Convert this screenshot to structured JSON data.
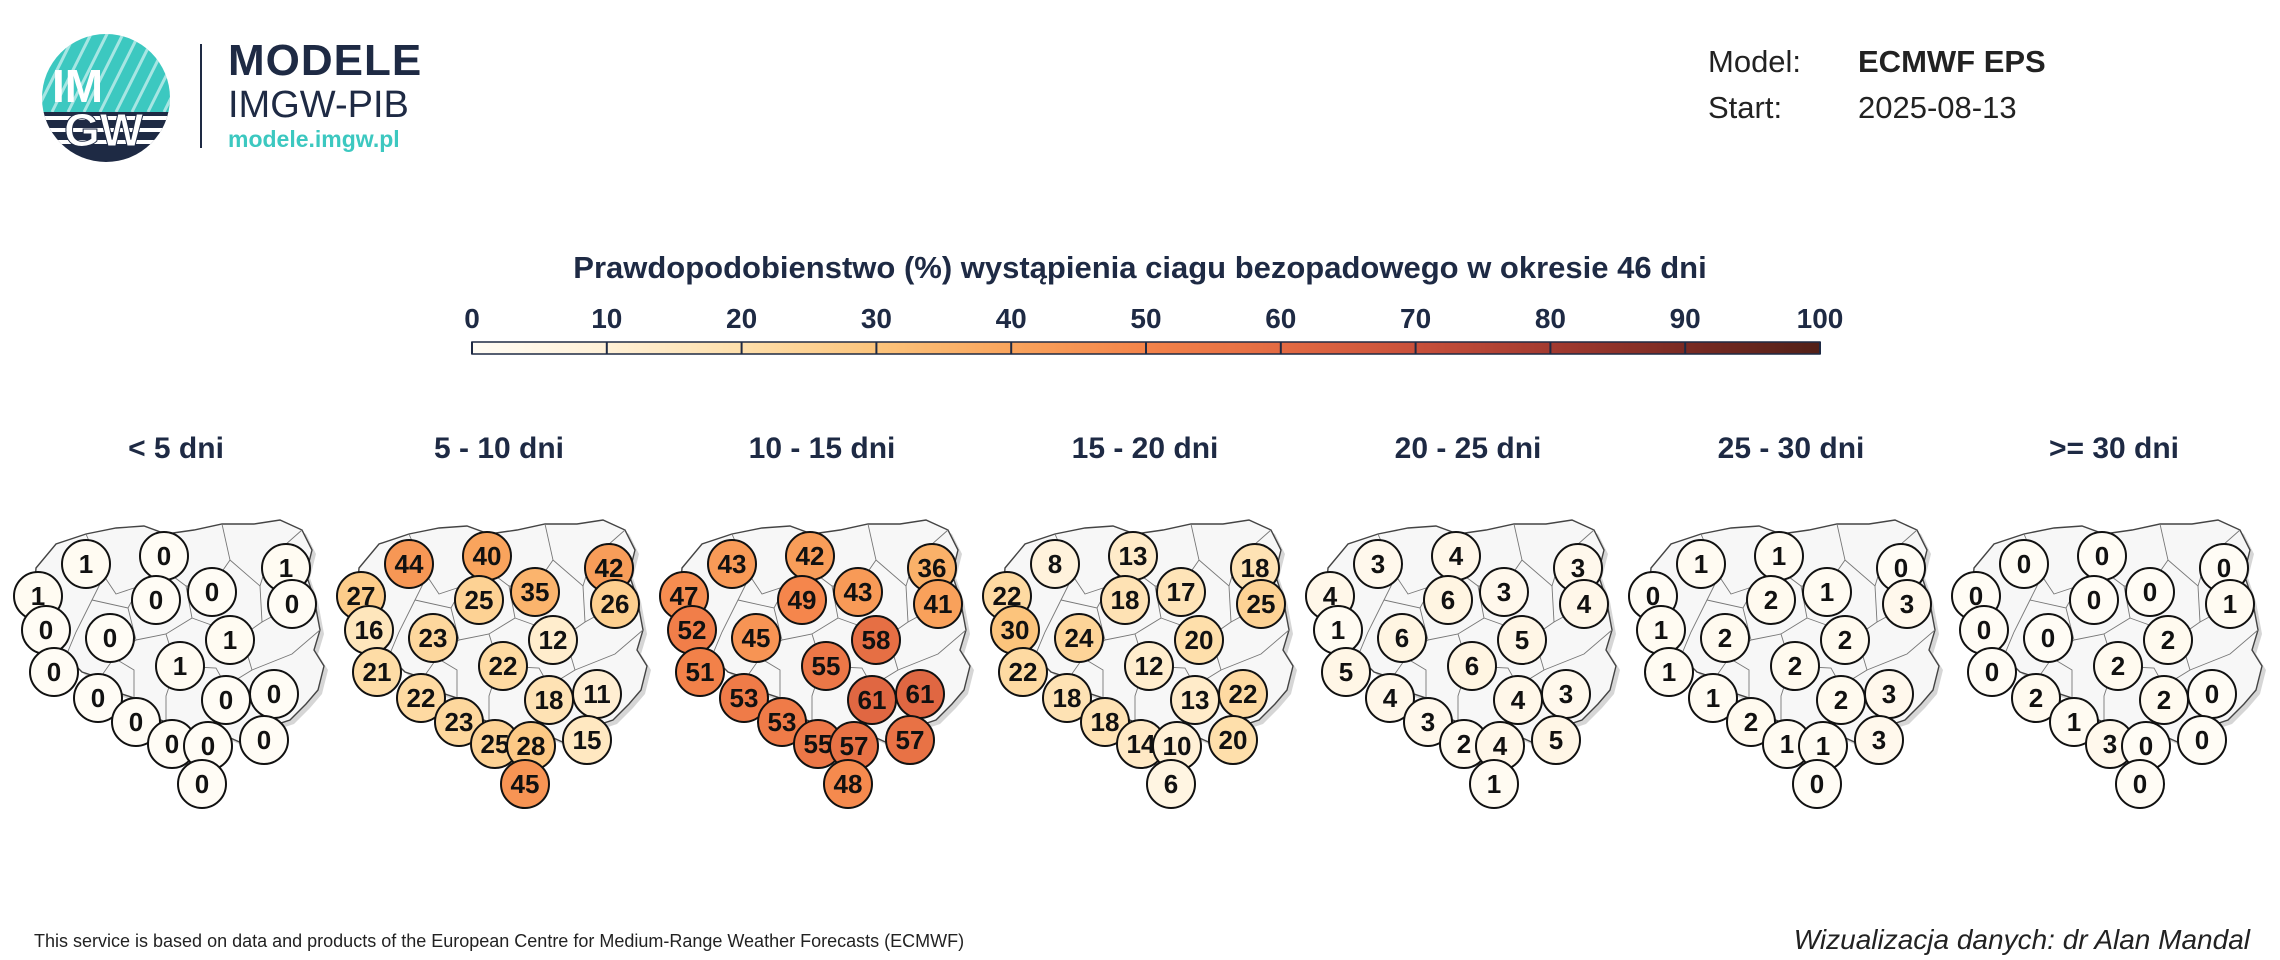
{
  "logo": {
    "circle_text_top": "IM",
    "circle_text_bottom": "GW",
    "name": "MODELE",
    "sub": "IMGW-PIB",
    "url": "modele.imgw.pl"
  },
  "meta": {
    "model_label": "Model:",
    "model_value": "ECMWF EPS",
    "start_label": "Start:",
    "start_value": "2025-08-13"
  },
  "title": "Prawdopodobienstwo (%) wystąpienia ciagu bezopadowego w okresie 46 dni",
  "colors": {
    "scale": [
      "#fffcf5",
      "#fff0d6",
      "#fedfab",
      "#fcc47c",
      "#f9a45d",
      "#f4834a",
      "#e36a43",
      "#c9503b",
      "#a33a30",
      "#7a2a23",
      "#522018"
    ],
    "brand_dark": "#1e2a44",
    "brand_teal": "#3cc8c0"
  },
  "chart_data": {
    "type": "map",
    "colorbar": {
      "min": 0,
      "max": 100,
      "ticks": [
        "0",
        "10",
        "20",
        "30",
        "40",
        "50",
        "60",
        "70",
        "80",
        "90",
        "100"
      ]
    },
    "panels": [
      {
        "label": "< 5 dni",
        "values": [
          1,
          0,
          1,
          1,
          0,
          0,
          0,
          0,
          0,
          1,
          0,
          1,
          0,
          0,
          0,
          0,
          0,
          0,
          0,
          0
        ]
      },
      {
        "label": "5 - 10 dni",
        "values": [
          44,
          40,
          42,
          27,
          35,
          16,
          25,
          26,
          23,
          12,
          21,
          22,
          22,
          18,
          11,
          23,
          25,
          28,
          15,
          45
        ]
      },
      {
        "label": "10 - 15 dni",
        "values": [
          43,
          42,
          36,
          47,
          43,
          52,
          49,
          41,
          45,
          58,
          51,
          55,
          53,
          61,
          61,
          53,
          55,
          57,
          57,
          48
        ]
      },
      {
        "label": "15 - 20 dni",
        "values": [
          8,
          13,
          18,
          22,
          17,
          30,
          18,
          25,
          24,
          20,
          22,
          12,
          18,
          13,
          22,
          18,
          14,
          10,
          20,
          6
        ]
      },
      {
        "label": "20 - 25 dni",
        "values": [
          3,
          4,
          3,
          4,
          3,
          1,
          6,
          4,
          6,
          5,
          5,
          6,
          4,
          4,
          3,
          3,
          2,
          4,
          5,
          1
        ]
      },
      {
        "label": "25 - 30 dni",
        "values": [
          1,
          1,
          0,
          0,
          1,
          1,
          2,
          3,
          2,
          2,
          1,
          2,
          1,
          2,
          3,
          2,
          1,
          1,
          3,
          0
        ]
      },
      {
        "label": ">= 30 dni",
        "values": [
          0,
          0,
          0,
          0,
          0,
          0,
          0,
          1,
          0,
          2,
          0,
          2,
          2,
          2,
          0,
          1,
          3,
          0,
          0,
          0
        ]
      }
    ]
  },
  "footer": {
    "left": "This service is based on data and products of the European Centre for Medium-Range Weather Forecasts (ECMWF)",
    "right": "Wizualizacja danych: dr Alan Mandal"
  }
}
